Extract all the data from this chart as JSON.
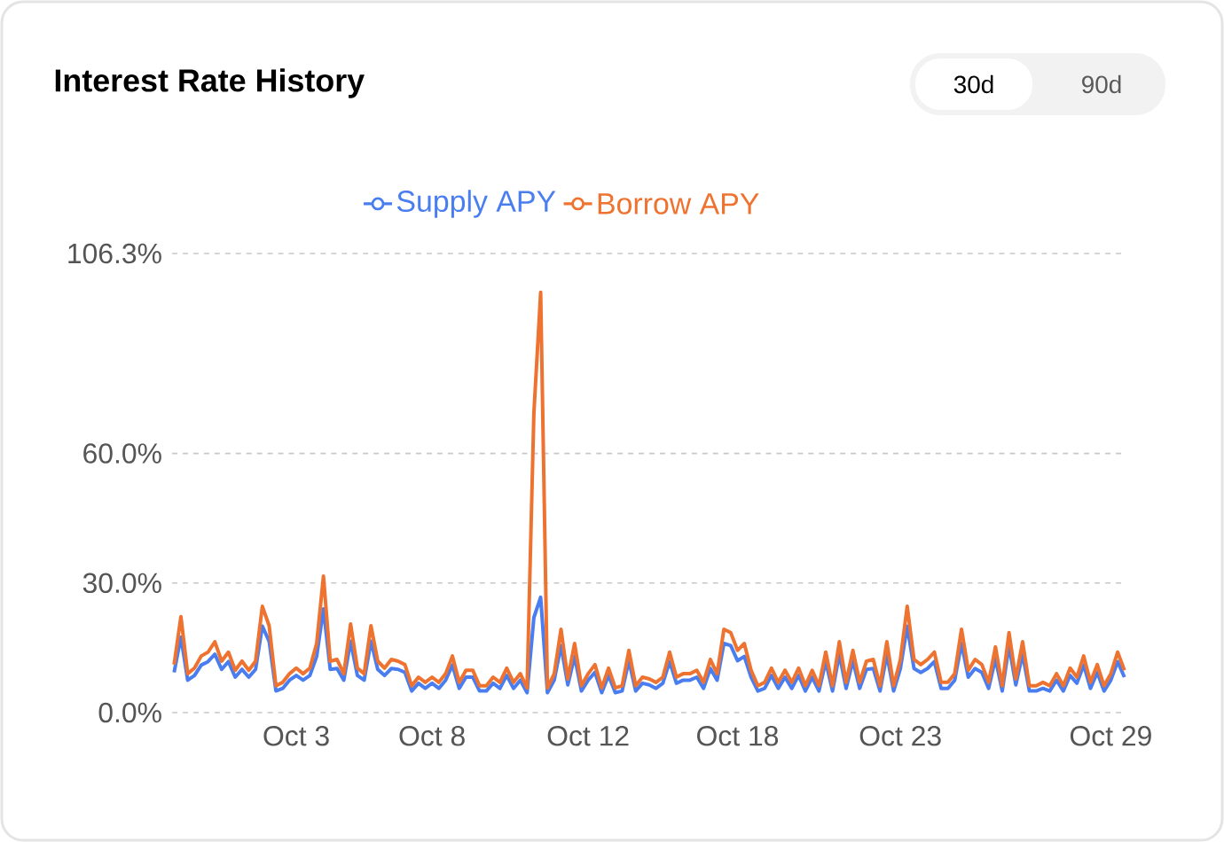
{
  "chart_data": {
    "type": "line",
    "title": "Interest Rate History",
    "annotations": [
      "30d",
      "90d"
    ],
    "categories": [
      null,
      null,
      null,
      null,
      null,
      null,
      null,
      null,
      null,
      null,
      null,
      null,
      null,
      null,
      null,
      null,
      null,
      null,
      "Oct 3",
      null,
      null,
      null,
      null,
      null,
      null,
      null,
      null,
      null,
      null,
      null,
      null,
      null,
      null,
      null,
      null,
      null,
      null,
      null,
      "Oct 8",
      null,
      null,
      null,
      null,
      null,
      null,
      null,
      null,
      null,
      null,
      null,
      null,
      null,
      null,
      null,
      null,
      null,
      null,
      null,
      null,
      null,
      null,
      "Oct 12",
      null,
      null,
      null,
      null,
      null,
      null,
      null,
      null,
      null,
      null,
      null,
      null,
      null,
      null,
      null,
      null,
      null,
      null,
      null,
      null,
      null,
      "Oct 18",
      null,
      null,
      null,
      null,
      null,
      null,
      null,
      null,
      null,
      null,
      null,
      null,
      null,
      null,
      null,
      null,
      null,
      null,
      null,
      null,
      null,
      null,
      null,
      "Oct 23",
      null,
      null,
      null,
      null,
      null,
      null,
      null,
      null,
      null,
      null,
      null,
      null,
      null,
      null,
      null,
      null,
      null,
      null,
      null,
      null,
      null,
      null,
      null,
      null,
      null,
      null,
      null,
      null,
      null,
      null,
      "Oct 29",
      null,
      null
    ],
    "series": [
      {
        "name": "Supply APY",
        "color": "#4a7ef0",
        "values": [
          9.3,
          17.5,
          7.5,
          8.6,
          11.0,
          11.8,
          13.5,
          10.0,
          11.8,
          8.2,
          10.0,
          8.2,
          10.0,
          20.0,
          16.5,
          5.0,
          5.6,
          7.5,
          8.6,
          7.5,
          8.6,
          13.0,
          24.0,
          10.0,
          10.2,
          7.5,
          16.5,
          8.6,
          7.5,
          16.5,
          10.0,
          8.6,
          10.2,
          10.0,
          9.3,
          5.0,
          6.8,
          5.6,
          6.8,
          5.6,
          7.5,
          11.0,
          5.6,
          8.2,
          8.2,
          5.0,
          5.0,
          6.8,
          5.6,
          8.6,
          5.6,
          7.5,
          4.6,
          22.0,
          26.7,
          4.6,
          7.5,
          15.5,
          6.4,
          13.0,
          5.0,
          7.5,
          9.3,
          4.6,
          8.6,
          4.6,
          5.0,
          12.0,
          5.0,
          6.8,
          6.4,
          5.6,
          6.8,
          11.8,
          6.8,
          7.5,
          7.5,
          8.2,
          5.6,
          10.2,
          7.5,
          16.0,
          15.5,
          12.0,
          13.0,
          8.2,
          5.0,
          5.6,
          8.6,
          5.6,
          8.2,
          5.6,
          8.6,
          5.0,
          8.2,
          5.0,
          11.8,
          5.0,
          13.5,
          5.6,
          12.0,
          5.6,
          10.0,
          10.2,
          5.0,
          13.5,
          5.0,
          10.2,
          20.0,
          10.2,
          9.3,
          10.2,
          11.8,
          5.6,
          5.6,
          7.5,
          16.0,
          8.2,
          10.2,
          9.3,
          5.6,
          12.5,
          5.0,
          15.5,
          6.4,
          13.5,
          5.0,
          5.0,
          5.6,
          5.0,
          7.5,
          5.0,
          8.6,
          6.8,
          11.0,
          5.6,
          9.3,
          5.0,
          7.5,
          11.8,
          8.2
        ]
      },
      {
        "name": "Borrow APY",
        "color": "#ee7330",
        "values": [
          11.1,
          22.2,
          9.0,
          10.3,
          13.1,
          14.0,
          16.4,
          11.9,
          14.0,
          9.8,
          11.9,
          9.8,
          11.9,
          24.6,
          20.1,
          6.2,
          7.0,
          9.0,
          10.3,
          9.0,
          10.3,
          16.0,
          31.6,
          11.9,
          12.3,
          9.0,
          20.5,
          10.3,
          9.0,
          20.1,
          11.9,
          10.3,
          12.3,
          11.9,
          11.1,
          6.2,
          8.2,
          7.0,
          8.2,
          7.0,
          9.0,
          13.1,
          7.0,
          9.8,
          9.8,
          6.2,
          6.2,
          8.2,
          7.0,
          10.3,
          7.0,
          9.0,
          5.7,
          69.3,
          97.3,
          5.7,
          9.0,
          19.3,
          7.8,
          16.0,
          6.2,
          9.0,
          11.1,
          5.7,
          10.3,
          5.7,
          6.2,
          14.4,
          6.2,
          8.2,
          7.8,
          7.0,
          8.2,
          14.0,
          8.2,
          9.0,
          9.0,
          9.8,
          7.0,
          12.3,
          9.0,
          19.3,
          18.5,
          14.4,
          16.0,
          9.8,
          6.2,
          7.0,
          10.3,
          7.0,
          9.8,
          7.0,
          10.3,
          6.2,
          9.8,
          6.2,
          14.0,
          6.2,
          16.4,
          7.0,
          14.4,
          7.0,
          11.9,
          12.3,
          6.2,
          16.4,
          6.2,
          12.3,
          24.6,
          12.3,
          11.1,
          12.3,
          14.0,
          7.0,
          7.0,
          9.0,
          19.3,
          9.8,
          12.3,
          11.1,
          7.0,
          15.2,
          6.2,
          18.5,
          7.8,
          16.4,
          6.2,
          6.2,
          7.0,
          6.2,
          9.0,
          6.2,
          10.3,
          8.2,
          13.1,
          7.0,
          11.1,
          6.2,
          9.0,
          14.0,
          9.8
        ]
      }
    ],
    "ylim": [
      0,
      106.3
    ],
    "yticks": [
      {
        "value": 0,
        "label": "0.0%"
      },
      {
        "value": 30,
        "label": "30.0%"
      },
      {
        "value": 60,
        "label": "60.0%"
      },
      {
        "value": 106.3,
        "label": "106.3%"
      }
    ],
    "grid": "y",
    "legend": "top"
  }
}
